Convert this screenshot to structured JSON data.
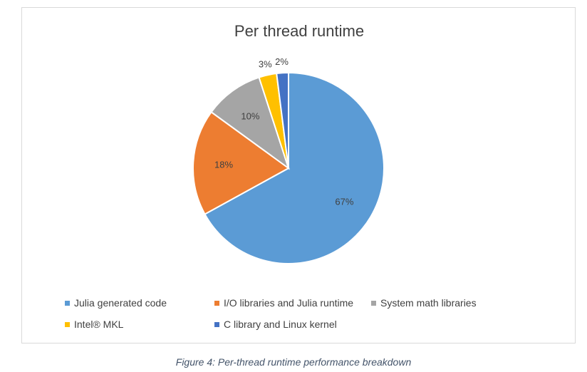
{
  "chart_data": {
    "type": "pie",
    "title": "Per thread runtime",
    "categories": [
      "Julia generated code",
      "I/O libraries and Julia runtime",
      "System math libraries",
      "Intel® MKL",
      "C library and Linux kernel"
    ],
    "values": [
      67,
      18,
      10,
      3,
      2
    ],
    "data_labels": [
      "67%",
      "18%",
      "10%",
      "3%",
      "2%"
    ],
    "colors": [
      "#5b9bd5",
      "#ed7d31",
      "#a5a5a5",
      "#ffc000",
      "#4472c4"
    ],
    "legend_position": "bottom"
  },
  "caption": "Figure 4: Per-thread runtime performance breakdown"
}
